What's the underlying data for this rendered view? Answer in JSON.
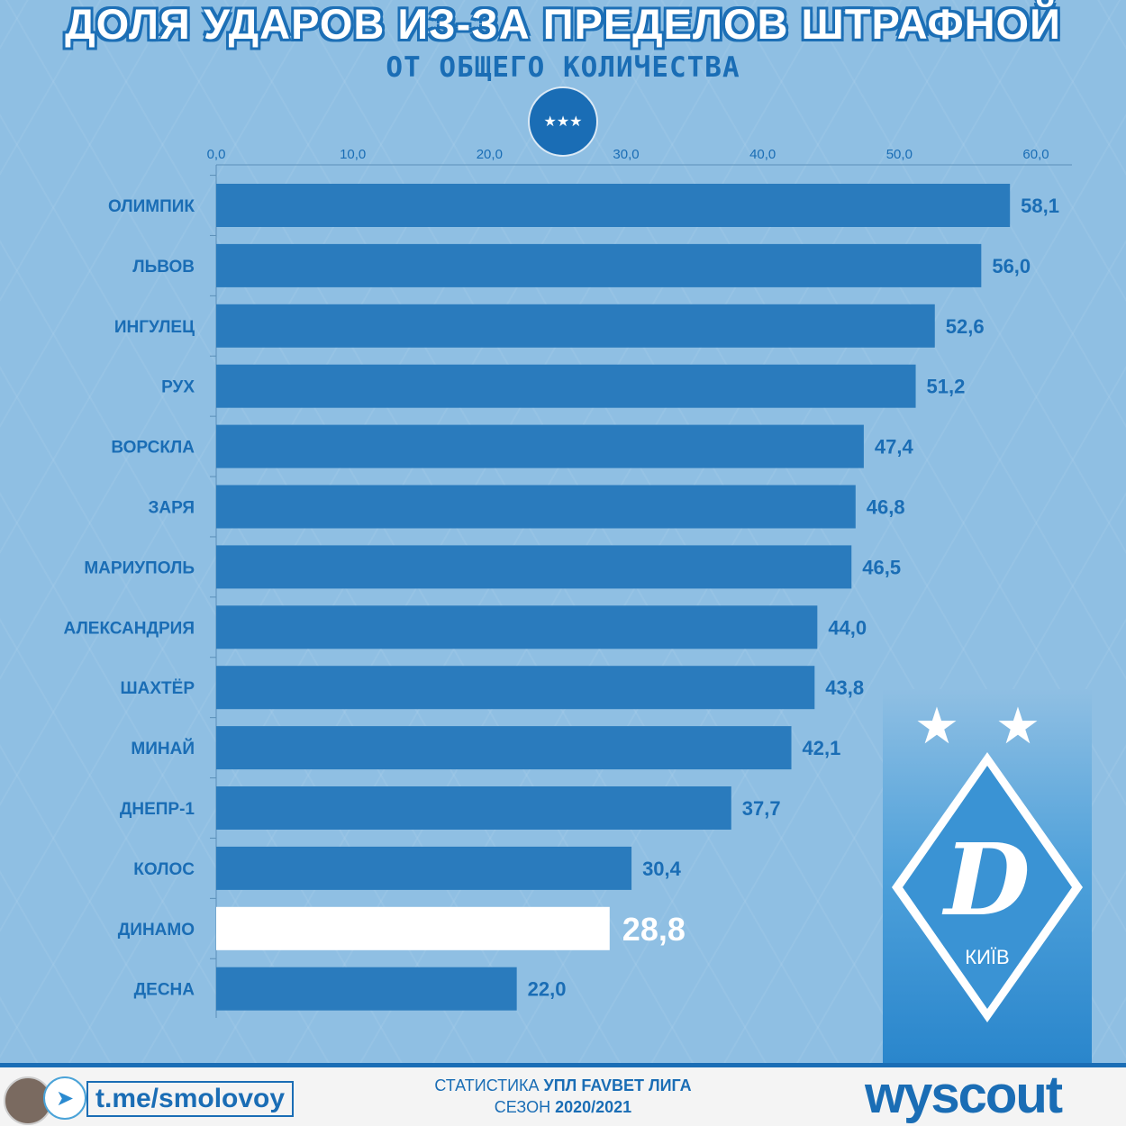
{
  "title": "ДОЛЯ УДАРОВ ИЗ-ЗА ПРЕДЕЛОВ ШТРАФНОЙ",
  "subtitle": "ОТ ОБЩЕГО КОЛИЧЕСТВА",
  "league_logo": "FAVBET ЛІГА",
  "club_logo": "КИЇВ",
  "colors": {
    "bar": "#2a7bbd",
    "highlight": "#ffffff",
    "background": "#8fbfe3",
    "text": "#1a6db5"
  },
  "chart_data": {
    "type": "bar",
    "orientation": "horizontal",
    "categories": [
      "ОЛИМПИК",
      "ЛЬВОВ",
      "ИНГУЛЕЦ",
      "РУХ",
      "ВОРСКЛА",
      "ЗАРЯ",
      "МАРИУПОЛЬ",
      "АЛЕКСАНДРИЯ",
      "ШАХТЁР",
      "МИНАЙ",
      "ДНЕПР-1",
      "КОЛОС",
      "ДИНАМО",
      "ДЕСНА"
    ],
    "values": [
      58.1,
      56.0,
      52.6,
      51.2,
      47.4,
      46.8,
      46.5,
      44.0,
      43.8,
      42.1,
      37.7,
      30.4,
      28.8,
      22.0
    ],
    "value_labels": [
      "58,1",
      "56,0",
      "52,6",
      "51,2",
      "47,4",
      "46,8",
      "46,5",
      "44,0",
      "43,8",
      "42,1",
      "37,7",
      "30,4",
      "28,8",
      "22,0"
    ],
    "highlight": "ДИНАМО",
    "xlim": [
      0,
      60
    ],
    "xticks": [
      "0,0",
      "10,0",
      "20,0",
      "30,0",
      "40,0",
      "50,0",
      "60,0"
    ],
    "axis_position": "top"
  },
  "footer": {
    "link": "t.me/smolovoy",
    "stat_prefix": "СТАТИСТИКА",
    "stat_league": "УПЛ FAVBET ЛИГА",
    "season_prefix": "СЕЗОН",
    "season": "2020/2021",
    "brand": "wyscout"
  }
}
